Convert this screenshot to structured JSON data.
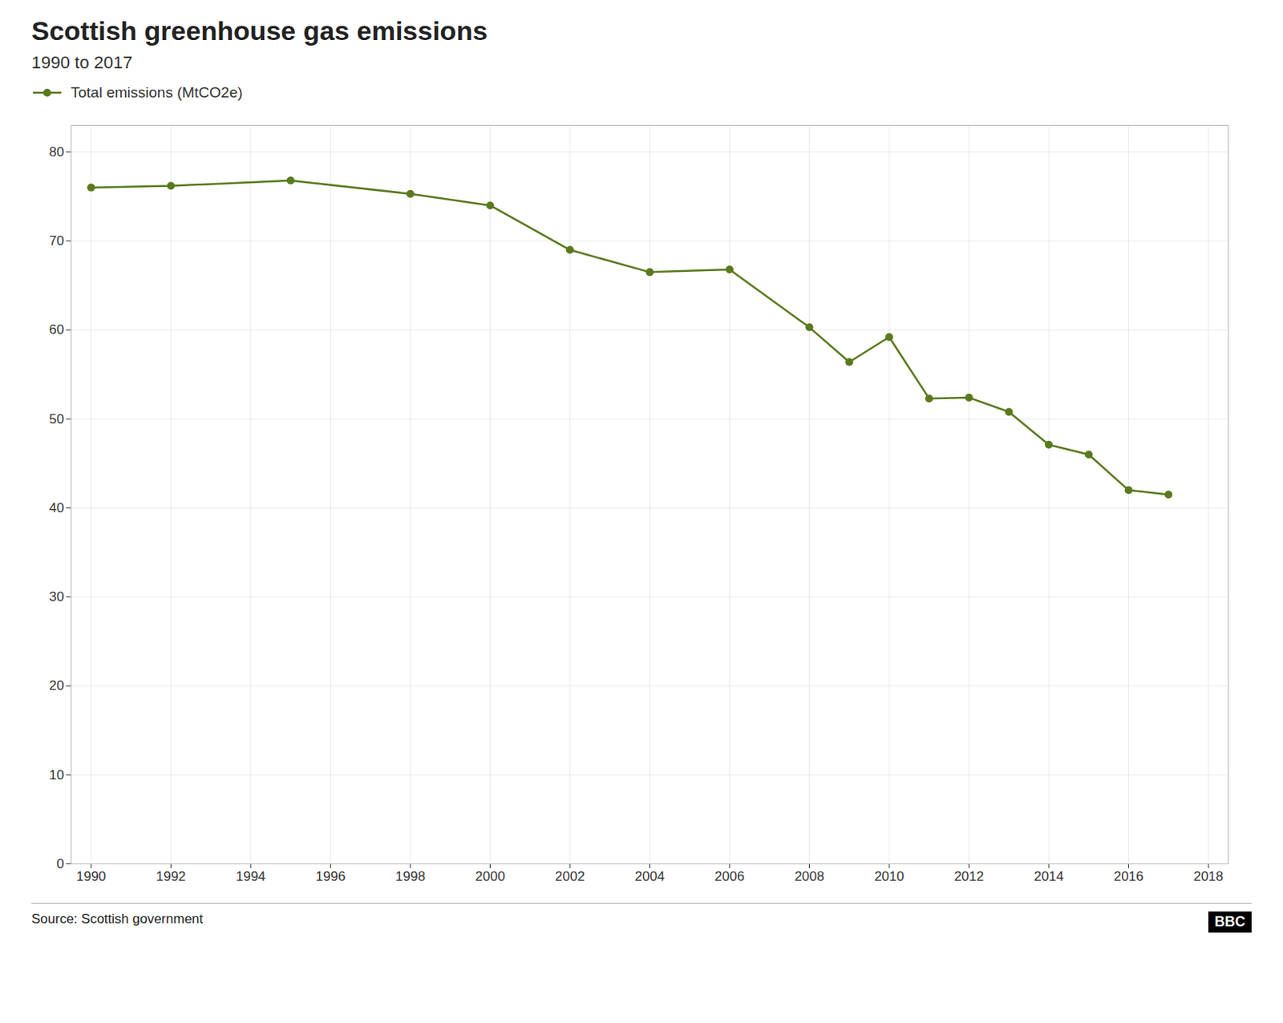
{
  "chart_data": {
    "type": "line",
    "title": "Scottish greenhouse gas emissions",
    "subtitle": "1990 to 2017",
    "source": "Source: Scottish government",
    "credit": "BBC",
    "x": [
      1990,
      1992,
      1995,
      1998,
      2000,
      2002,
      2004,
      2006,
      2008,
      2009,
      2010,
      2011,
      2012,
      2013,
      2014,
      2015,
      2016,
      2017
    ],
    "series": [
      {
        "name": "Total emissions (MtCO2e)",
        "color": "#5a7a1e",
        "marker": "circle",
        "values": [
          76.0,
          76.2,
          76.8,
          75.3,
          74.0,
          69.0,
          66.5,
          66.8,
          60.3,
          56.4,
          59.2,
          52.3,
          52.4,
          50.8,
          47.1,
          46.0,
          42.0,
          41.5
        ]
      }
    ],
    "xlim": [
      1989.5,
      2018.5
    ],
    "xticks": [
      1990,
      1992,
      1994,
      1996,
      1998,
      2000,
      2002,
      2004,
      2006,
      2008,
      2010,
      2012,
      2014,
      2016,
      2018
    ],
    "ylim": [
      0,
      83
    ],
    "yticks": [
      0,
      10,
      20,
      30,
      40,
      50,
      60,
      70,
      80
    ],
    "grid": true,
    "legend": "upper left"
  }
}
